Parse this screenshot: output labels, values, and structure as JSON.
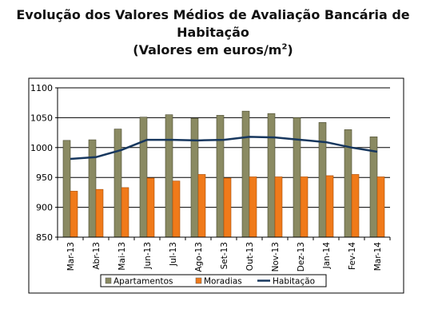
{
  "title_line1": "Evolução dos Valores Médios de Avaliação Bancária de",
  "title_line2": "Habitação",
  "title_line3": "(Valores em euros/m",
  "title_sup": "2",
  "title_close": ")",
  "chart_data": {
    "type": "bar",
    "categories": [
      "Mar-13",
      "Abr-13",
      "Mai-13",
      "Jun-13",
      "Jul-13",
      "Ago-13",
      "Set-13",
      "Out-13",
      "Nov-13",
      "Dez-13",
      "Jan-14",
      "Fev-14",
      "Mar-14"
    ],
    "series": [
      {
        "name": "Apartamentos",
        "type": "bar",
        "color": "#8a8a62",
        "values": [
          1012,
          1013,
          1031,
          1051,
          1055,
          1049,
          1054,
          1061,
          1057,
          1050,
          1042,
          1030,
          1018
        ]
      },
      {
        "name": "Moradias",
        "type": "bar",
        "color": "#f07a1a",
        "values": [
          927,
          930,
          933,
          949,
          944,
          955,
          949,
          951,
          951,
          951,
          953,
          955,
          951
        ]
      },
      {
        "name": "Habitação",
        "type": "line",
        "color": "#17375e",
        "values": [
          981,
          984,
          996,
          1013,
          1013,
          1012,
          1013,
          1018,
          1017,
          1013,
          1009,
          1000,
          993
        ]
      }
    ],
    "yticks": [
      850,
      900,
      950,
      1000,
      1050,
      1100
    ],
    "ylim": [
      850,
      1100
    ],
    "grid": true,
    "legend": "bottom"
  }
}
